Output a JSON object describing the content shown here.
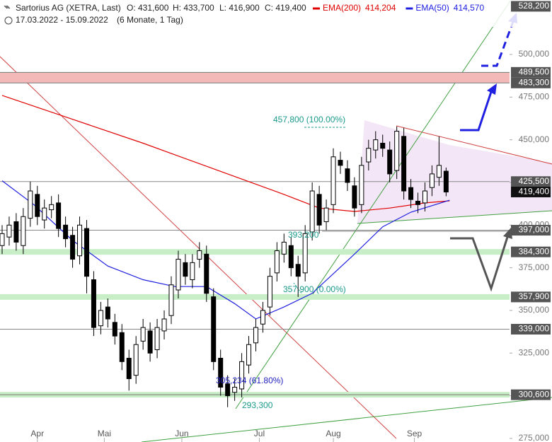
{
  "chart_data": {
    "type": "candlestick",
    "title": "Sartorius AG (XETRA, Last)",
    "ohlc_text": [
      "O: 431,600",
      "H: 433,700",
      "L: 416,900",
      "C: 419,400"
    ],
    "date_range": "17.03.2022 - 15.09.2022",
    "period": "(6 Monate, 1 Tag)",
    "candle_color": "#000000",
    "x": [
      0,
      2,
      4,
      6,
      8,
      10,
      12,
      14,
      16,
      18,
      20,
      22,
      24,
      26,
      28,
      30,
      32,
      34,
      36,
      38,
      40,
      42,
      44,
      46,
      48,
      50,
      52,
      54,
      56,
      58,
      60,
      62,
      64,
      66,
      68,
      70,
      72,
      74,
      76,
      78,
      80,
      82,
      84,
      86,
      88,
      90,
      92,
      94,
      96,
      98,
      100,
      102,
      104,
      106,
      108,
      110,
      112,
      114,
      116,
      118,
      120,
      122,
      124,
      126
    ],
    "open": [
      388000,
      393000,
      402000,
      388000,
      404000,
      418000,
      403000,
      409000,
      413000,
      400000,
      394000,
      382000,
      398000,
      368000,
      341000,
      352000,
      343000,
      337000,
      322000,
      312000,
      332000,
      338000,
      327000,
      338000,
      347000,
      362000,
      378000,
      368000,
      380000,
      383000,
      358000,
      322000,
      307000,
      302000,
      304000,
      318000,
      331000,
      342000,
      352000,
      372000,
      383000,
      388000,
      377000,
      372000,
      396000,
      418000,
      402000,
      412000,
      438000,
      433000,
      423000,
      412000,
      437000,
      444000,
      448000,
      444000,
      432000,
      452000,
      422000,
      414000,
      413000,
      422000,
      428000,
      431600
    ],
    "high": [
      400000,
      405000,
      407000,
      410000,
      425500,
      423000,
      415000,
      417000,
      418000,
      405000,
      399000,
      405000,
      403000,
      373000,
      355000,
      357000,
      348000,
      342000,
      327000,
      335000,
      345000,
      343000,
      345000,
      350000,
      370000,
      385000,
      383000,
      383000,
      390000,
      388000,
      363000,
      327000,
      312000,
      310000,
      325000,
      335000,
      345000,
      355000,
      375000,
      390000,
      395000,
      393000,
      382000,
      400000,
      425000,
      423000,
      415000,
      445000,
      443000,
      438000,
      428000,
      440000,
      450000,
      455000,
      453000,
      449000,
      457800,
      457000,
      427000,
      419000,
      425000,
      435000,
      452000,
      433700
    ],
    "low": [
      383000,
      388000,
      385000,
      383000,
      399000,
      400000,
      398000,
      404000,
      393000,
      387000,
      375000,
      377000,
      360000,
      335000,
      336000,
      340000,
      330000,
      315000,
      303000,
      307000,
      327000,
      320000,
      322000,
      333000,
      342000,
      357000,
      365000,
      363000,
      375000,
      355000,
      315000,
      300000,
      293300,
      297000,
      299000,
      313000,
      326000,
      337000,
      347000,
      367000,
      378000,
      370000,
      357900,
      367000,
      391000,
      395000,
      397000,
      407000,
      430000,
      420000,
      405000,
      407000,
      432000,
      439000,
      440000,
      425000,
      427000,
      415000,
      410000,
      407000,
      408000,
      417000,
      423000,
      416900
    ],
    "close": [
      395000,
      400000,
      390000,
      405000,
      420000,
      405000,
      410000,
      412000,
      398000,
      392000,
      380000,
      400000,
      370000,
      340000,
      350000,
      345000,
      335000,
      320000,
      310000,
      330000,
      340000,
      325000,
      340000,
      345000,
      365000,
      380000,
      370000,
      378000,
      385000,
      360000,
      320000,
      305000,
      300000,
      305000,
      320000,
      330000,
      340000,
      350000,
      370000,
      385000,
      390000,
      375000,
      370000,
      395000,
      420000,
      400000,
      410000,
      440000,
      435000,
      425000,
      410000,
      435000,
      445000,
      450000,
      445000,
      430000,
      455000,
      420000,
      415000,
      412000,
      420000,
      430000,
      435000,
      419400
    ],
    "lines": [
      {
        "name": "EMA(200)",
        "color": "#e00000",
        "value_label": "414,204",
        "x": [
          0,
          20,
          40,
          60,
          80,
          90,
          100,
          110,
          120,
          127
        ],
        "values": [
          476000,
          462000,
          448000,
          433000,
          418000,
          410000,
          408000,
          410000,
          413000,
          414204
        ]
      },
      {
        "name": "EMA(50)",
        "color": "#2020e0",
        "value_label": "414,570",
        "x": [
          0,
          9,
          20,
          30,
          40,
          49,
          58,
          66,
          72,
          80,
          88,
          100,
          108,
          116,
          127
        ],
        "values": [
          426000,
          412000,
          391000,
          376000,
          368000,
          364000,
          364000,
          354000,
          345000,
          352000,
          360000,
          383000,
          399000,
          407600,
          414570
        ]
      }
    ],
    "levels": [
      {
        "value": 528200,
        "label": "528,200",
        "box": "#555555"
      },
      {
        "value": 489500,
        "label": "489,500",
        "box": "#555555",
        "line": "#777777"
      },
      {
        "value": 483300,
        "label": "483,300",
        "box": "#555555",
        "line": "#777777"
      },
      {
        "value": 425500,
        "label": "425,500",
        "box": "#555555",
        "line": "#888888"
      },
      {
        "value": 419400,
        "label": "419,400",
        "box": "#111111"
      },
      {
        "value": 397000,
        "label": "397,000",
        "box": "#555555",
        "line": "#888888"
      },
      {
        "value": 384300,
        "label": "384,300",
        "box": "#555555",
        "band": "#c8eec8"
      },
      {
        "value": 357900,
        "label": "357,900",
        "box": "#555555",
        "band": "#c8eec8"
      },
      {
        "value": 339000,
        "label": "339,000",
        "box": "#555555",
        "line": "#888888"
      },
      {
        "value": 300600,
        "label": "300,600",
        "box": "#555555",
        "band": "#c8eec8",
        "line": "#777777"
      }
    ],
    "zone": {
      "from": 483300,
      "to": 489500,
      "color": "#f3b9b9"
    },
    "annotations": [
      "457,800 (100.00%)",
      "393,200",
      "357,900 (0.00%)",
      "305,234 (61.80%)",
      "293,300"
    ],
    "ylim": [
      272900,
      531900
    ],
    "yticks": [
      {
        "value": 275000,
        "label": "275,000"
      },
      {
        "value": 300000,
        "label": "300,000"
      },
      {
        "value": 325000,
        "label": "325,000"
      },
      {
        "value": 350000,
        "label": "350,000"
      },
      {
        "value": 375000,
        "label": "375,000"
      },
      {
        "value": 400000,
        "label": "400,000"
      },
      {
        "value": 425000,
        "label": "425,000"
      },
      {
        "value": 450000,
        "label": "450,000"
      },
      {
        "value": 475000,
        "label": "475,000"
      },
      {
        "value": 500000,
        "label": "500,000"
      }
    ],
    "xlim": [
      -0.6,
      143
    ],
    "xticks": [
      {
        "value": 10,
        "label": "Apr"
      },
      {
        "value": 29,
        "label": "Mai"
      },
      {
        "value": 51,
        "label": "Jun"
      },
      {
        "value": 73,
        "label": "Jul"
      },
      {
        "value": 94,
        "label": "Aug"
      },
      {
        "value": 117,
        "label": "Sep"
      }
    ]
  }
}
